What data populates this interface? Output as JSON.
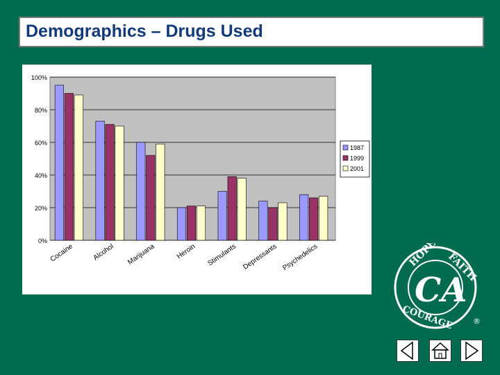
{
  "slide": {
    "title": "Demographics – Drugs Used"
  },
  "chart_data": {
    "type": "bar",
    "categories": [
      "Cocaine",
      "Alcohol",
      "Marijuana",
      "Heroin",
      "Stimulants",
      "Depressants",
      "Psychedelics"
    ],
    "series": [
      {
        "name": "1987",
        "values": [
          95,
          73,
          60,
          20,
          30,
          24,
          28
        ],
        "color": "#9999ff"
      },
      {
        "name": "1999",
        "values": [
          90,
          71,
          52,
          21,
          39,
          20,
          26
        ],
        "color": "#993366"
      },
      {
        "name": "2001",
        "values": [
          89,
          70,
          59,
          21,
          38,
          23,
          27
        ],
        "color": "#ffffcc"
      }
    ],
    "yticks": [
      "0%",
      "20%",
      "40%",
      "60%",
      "80%",
      "100%"
    ],
    "ylim": [
      0,
      100
    ],
    "grid": true,
    "legend_position": "right",
    "plot_background": "#c0c0c0"
  },
  "logo": {
    "top_left": "HOPE",
    "top_right": "FAITH",
    "bottom": "COURAGE",
    "monogram": "CA",
    "mark": "®"
  },
  "nav": {
    "icons": [
      "back-icon",
      "home-icon",
      "forward-icon"
    ]
  }
}
